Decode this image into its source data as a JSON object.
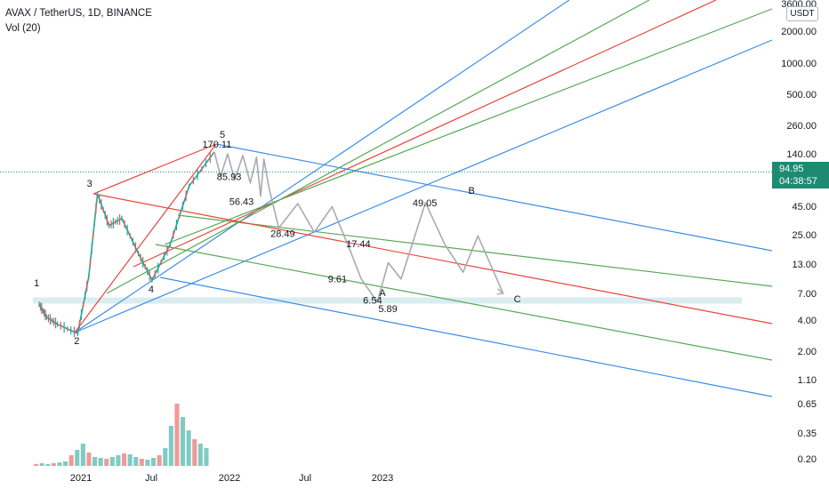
{
  "header": {
    "title": "AVAX / TetherUS, 1D, BINANCE",
    "indicator": "Vol (20)"
  },
  "price_badge": {
    "price": "94.95",
    "countdown": "04:38:57",
    "color": "#1e8a72"
  },
  "unit_badge": "USDT",
  "colors": {
    "blue": "#3a8ee6",
    "green": "#57a957",
    "red": "#e8463c",
    "projection": "#a8aaaf",
    "zone": "#cfe8ee"
  },
  "chart_data": {
    "type": "line",
    "title": "",
    "xlabel": "",
    "ylabel": "",
    "y_scale": "log",
    "x_ticks": [
      "2021",
      "Jul",
      "2022",
      "Jul",
      "2023"
    ],
    "y_ticks": [
      "3600.00",
      "2000.00",
      "1000.00",
      "500.00",
      "260.00",
      "140.00",
      "45.00",
      "25.00",
      "13.00",
      "7.00",
      "4.00",
      "2.00",
      "1.10",
      "0.65",
      "0.35",
      "0.20"
    ],
    "grid": false,
    "wave_labels": [
      {
        "text": "1",
        "x": "2020-09-22",
        "y": 7.5
      },
      {
        "text": "2",
        "x": "2020-12-24",
        "y": 2.95
      },
      {
        "text": "3",
        "x": "2021-02-10",
        "y": 59.0
      },
      {
        "text": "4",
        "x": "2021-06-22",
        "y": 9.3
      },
      {
        "text": "5",
        "x": "2021-11-20",
        "y": 146.0
      },
      {
        "text": "A",
        "x": "2022-12-20",
        "y": 5.89
      },
      {
        "text": "B",
        "x": "2023-07-15",
        "y": 49.05
      },
      {
        "text": "C",
        "x": "2023-10-20",
        "y": 7.0
      }
    ],
    "price_labels": [
      "170.11",
      "85.93",
      "56.43",
      "28.49",
      "17.44",
      "9.61",
      "6.54",
      "5.89",
      "49.05"
    ],
    "series": [
      {
        "name": "",
        "values": [
          [
            "2020-09-22",
            5.5
          ],
          [
            "2020-10-10",
            4.2
          ],
          [
            "2020-11-05",
            3.6
          ],
          [
            "2020-12-24",
            2.95
          ],
          [
            "2021-01-20",
            10.0
          ],
          [
            "2021-02-10",
            59.0
          ],
          [
            "2021-03-10",
            30.0
          ],
          [
            "2021-04-10",
            35.0
          ],
          [
            "2021-05-20",
            16.5
          ],
          [
            "2021-06-22",
            9.3
          ],
          [
            "2021-08-05",
            20.0
          ],
          [
            "2021-09-20",
            70.0
          ],
          [
            "2021-11-20",
            146.0
          ]
        ]
      },
      {
        "name": "",
        "values": [
          [
            "2021-11-20",
            146.0
          ],
          [
            "2021-12-05",
            85.93
          ],
          [
            "2021-12-22",
            140.0
          ],
          [
            "2022-01-08",
            80.0
          ],
          [
            "2022-01-28",
            135.0
          ],
          [
            "2022-02-15",
            75.0
          ],
          [
            "2022-03-02",
            130.0
          ],
          [
            "2022-03-12",
            56.43
          ],
          [
            "2022-03-20",
            125.0
          ],
          [
            "2022-04-02",
            65.0
          ],
          [
            "2022-04-25",
            28.49
          ],
          [
            "2022-06-10",
            48.0
          ],
          [
            "2022-07-20",
            26.0
          ],
          [
            "2022-09-01",
            45.0
          ],
          [
            "2022-10-15",
            17.44
          ],
          [
            "2022-11-10",
            9.61
          ],
          [
            "2022-12-10",
            6.54
          ],
          [
            "2022-12-20",
            5.89
          ],
          [
            "2023-01-15",
            13.5
          ],
          [
            "2023-02-15",
            9.5
          ],
          [
            "2023-04-15",
            49.05
          ],
          [
            "2023-06-01",
            20.0
          ],
          [
            "2023-07-15",
            11.0
          ],
          [
            "2023-08-20",
            24.0
          ],
          [
            "2023-10-20",
            7.0
          ]
        ]
      }
    ],
    "volume": [
      0.02,
      0.03,
      0.02,
      0.03,
      0.04,
      0.05,
      0.12,
      0.18,
      0.25,
      0.15,
      0.1,
      0.09,
      0.08,
      0.1,
      0.12,
      0.14,
      0.13,
      0.1,
      0.08,
      0.07,
      0.09,
      0.12,
      0.2,
      0.45,
      0.7,
      0.55,
      0.4,
      0.3,
      0.25,
      0.2
    ]
  }
}
